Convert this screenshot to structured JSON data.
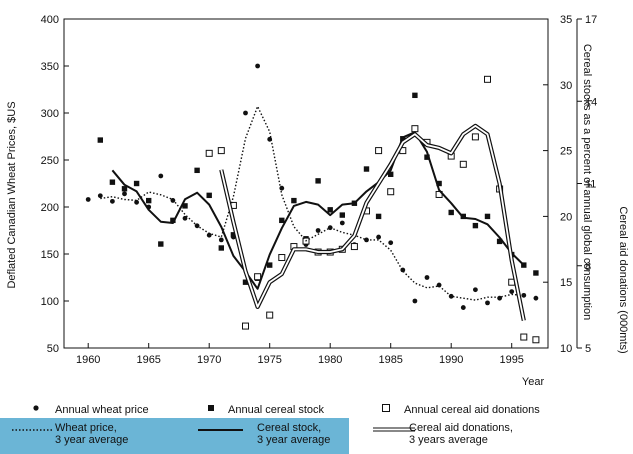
{
  "chart_data": {
    "type": "scatter",
    "title": "",
    "xlabel": "Year",
    "ylabel_left": "Deflated Canadian Wheat Prices, $US",
    "ylabel_right1": "Cereal stocks as a percent of annual global consumption",
    "ylabel_right2": "Cereal aid donations (000mts)",
    "xlim": [
      1958,
      1998
    ],
    "xticks": [
      1960,
      1965,
      1970,
      1975,
      1980,
      1985,
      1990,
      1995
    ],
    "ylim_left": [
      50,
      400
    ],
    "yticks_left": [
      50,
      100,
      150,
      200,
      250,
      300,
      350,
      400
    ],
    "ylim_right1": [
      10,
      35
    ],
    "yticks_right1": [
      10,
      15,
      20,
      25,
      30,
      35
    ],
    "ylim_right2": [
      5,
      17
    ],
    "yticks_right2": [
      5,
      8,
      11,
      14,
      17
    ],
    "grid": false,
    "legend_position": "bottom",
    "series": [
      {
        "name": "Annual wheat price",
        "axis": "left",
        "marker": "circle",
        "x": [
          1960,
          1961,
          1962,
          1963,
          1964,
          1965,
          1966,
          1967,
          1968,
          1969,
          1970,
          1971,
          1972,
          1973,
          1974,
          1975,
          1976,
          1977,
          1978,
          1979,
          1980,
          1981,
          1982,
          1983,
          1984,
          1985,
          1986,
          1987,
          1988,
          1989,
          1990,
          1991,
          1992,
          1993,
          1994,
          1995,
          1996,
          1997
        ],
        "y": [
          208,
          212,
          206,
          214,
          205,
          200,
          233,
          207,
          188,
          180,
          170,
          165,
          168,
          300,
          350,
          272,
          220,
          158,
          160,
          175,
          178,
          183,
          160,
          165,
          168,
          162,
          133,
          100,
          125,
          117,
          105,
          93,
          112,
          98,
          103,
          110,
          106,
          103
        ]
      },
      {
        "name": "Annual cereal stock",
        "axis": "right1",
        "marker": "square",
        "x": [
          1961,
          1962,
          1963,
          1964,
          1965,
          1966,
          1967,
          1968,
          1969,
          1970,
          1971,
          1972,
          1973,
          1974,
          1975,
          1976,
          1977,
          1978,
          1979,
          1980,
          1981,
          1982,
          1983,
          1984,
          1985,
          1986,
          1987,
          1988,
          1989,
          1990,
          1991,
          1992,
          1993,
          1994,
          1995,
          1996,
          1997
        ],
        "y": [
          25.8,
          22.6,
          22.1,
          22.5,
          21.2,
          17.9,
          19.7,
          20.8,
          23.5,
          21.6,
          17.6,
          18.6,
          15.0,
          15.3,
          16.3,
          19.7,
          21.2,
          18.3,
          22.7,
          20.5,
          20.1,
          21.0,
          23.6,
          20.0,
          23.2,
          25.9,
          29.2,
          24.5,
          22.5,
          20.3,
          20.0,
          19.3,
          20.0,
          18.1,
          17.1,
          16.3,
          15.7
        ]
      },
      {
        "name": "Annual cereal aid donations",
        "axis": "right2",
        "marker": "open-square",
        "x": [
          1970,
          1971,
          1972,
          1973,
          1974,
          1975,
          1976,
          1977,
          1978,
          1979,
          1980,
          1981,
          1982,
          1983,
          1984,
          1985,
          1986,
          1987,
          1988,
          1989,
          1990,
          1991,
          1992,
          1993,
          1994,
          1995,
          1996,
          1997
        ],
        "y": [
          12.1,
          12.2,
          10.2,
          5.8,
          7.6,
          6.2,
          8.3,
          8.7,
          8.9,
          8.5,
          8.5,
          8.6,
          8.7,
          10.0,
          12.2,
          10.7,
          12.2,
          13.0,
          12.5,
          10.6,
          12.0,
          11.7,
          12.7,
          14.8,
          10.8,
          7.4,
          5.4,
          5.3
        ]
      },
      {
        "name": "Wheat price, 3 year average",
        "axis": "left",
        "style": "dotted",
        "x": [
          1961,
          1962,
          1963,
          1964,
          1965,
          1966,
          1967,
          1968,
          1969,
          1970,
          1971,
          1972,
          1973,
          1974,
          1975,
          1976,
          1977,
          1978,
          1979,
          1980,
          1981,
          1982,
          1983,
          1984,
          1985,
          1986,
          1987,
          1988,
          1989,
          1990,
          1991,
          1992,
          1993,
          1994,
          1995,
          1996
        ],
        "y": [
          209,
          211,
          208,
          207,
          216,
          213,
          208,
          192,
          180,
          172,
          168,
          211,
          273,
          307,
          280,
          213,
          179,
          164,
          171,
          178,
          173,
          170,
          165,
          165,
          154,
          132,
          119,
          114,
          116,
          105,
          103,
          101,
          104,
          104,
          107,
          106
        ]
      },
      {
        "name": "Cereal stock, 3 year average",
        "axis": "right1",
        "style": "solid",
        "x": [
          1962,
          1963,
          1964,
          1965,
          1966,
          1967,
          1968,
          1969,
          1970,
          1971,
          1972,
          1973,
          1974,
          1975,
          1976,
          1977,
          1978,
          1979,
          1980,
          1981,
          1982,
          1983,
          1984,
          1985,
          1986,
          1987,
          1988,
          1989,
          1990,
          1991,
          1992,
          1993,
          1994,
          1995,
          1996
        ],
        "y": [
          23.5,
          22.4,
          21.9,
          20.5,
          19.6,
          19.5,
          21.3,
          21.8,
          20.9,
          19.2,
          17.0,
          15.8,
          14.5,
          17.1,
          19.1,
          20.8,
          21.1,
          20.9,
          20.1,
          20.9,
          21.0,
          21.9,
          22.6,
          23.5,
          26.0,
          26.4,
          24.9,
          22.0,
          21.0,
          19.9,
          19.8,
          19.4,
          18.4,
          17.2,
          16.3
        ]
      },
      {
        "name": "Cereal aid donations, 3 years average",
        "axis": "right2",
        "style": "double",
        "x": [
          1971,
          1972,
          1973,
          1974,
          1975,
          1976,
          1977,
          1978,
          1979,
          1980,
          1981,
          1982,
          1983,
          1984,
          1985,
          1986,
          1987,
          1988,
          1989,
          1990,
          1991,
          1992,
          1993,
          1994,
          1995,
          1996
        ],
        "y": [
          11.5,
          9.6,
          7.8,
          6.5,
          7.4,
          7.7,
          8.6,
          8.6,
          8.5,
          8.5,
          8.6,
          9.1,
          10.3,
          11.0,
          11.7,
          12.5,
          12.8,
          12.4,
          12.3,
          12.1,
          12.8,
          13.1,
          12.8,
          11.0,
          8.2,
          6.0
        ]
      }
    ]
  },
  "legend": {
    "wheat_price": "Annual wheat price",
    "cereal_stock": "Annual cereal stock",
    "cereal_aid": "Annual cereal aid donations",
    "wheat_avg_1": "Wheat price,",
    "wheat_avg_2": "3 year average",
    "stock_avg_1": "Cereal stock,",
    "stock_avg_2": "3 year average",
    "aid_avg_1": "Cereal aid donations,",
    "aid_avg_2": "3 years average"
  }
}
